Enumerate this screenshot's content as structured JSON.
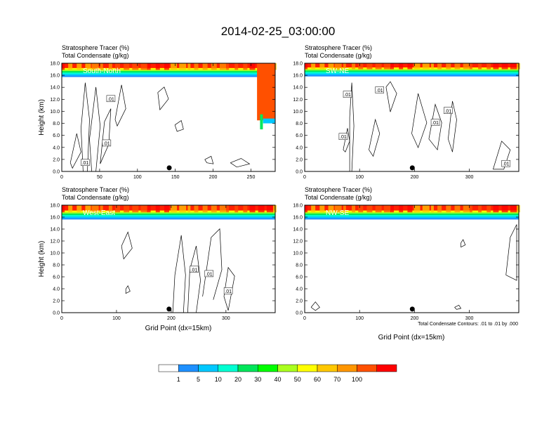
{
  "figure": {
    "title": "2014-02-25_03:00:00",
    "contour_info": "Total Condensate Contours: .01 to .01 by .000",
    "x_axis_label": "Grid Point (dx=15km)"
  },
  "colorbar": {
    "levels": [
      "1",
      "5",
      "10",
      "20",
      "30",
      "40",
      "50",
      "60",
      "70",
      "100"
    ],
    "colors": [
      "#ffffff",
      "#1e90ff",
      "#00c8ff",
      "#00ffd2",
      "#00e65a",
      "#00ff00",
      "#aaff1e",
      "#ffff00",
      "#ffc800",
      "#ff9600",
      "#ff5000",
      "#ff0000"
    ]
  },
  "chart_data": [
    {
      "type": "heatmap",
      "panel_label": "South-North",
      "left_title_line1": "Stratosphere Tracer   (%)",
      "left_title_line2": "Total Condensate   (g/kg)",
      "ylabel": "Height (km)",
      "xlabel": "",
      "xlim": [
        0,
        282
      ],
      "ylim": [
        0,
        18
      ],
      "xticks": [
        0,
        50,
        100,
        150,
        200,
        250
      ],
      "yticks": [
        "0.0",
        "2.0",
        "4.0",
        "6.0",
        "8.0",
        "10.0",
        "12.0",
        "14.0",
        "16.0",
        "18.0"
      ],
      "tracer_base_km": 15.7,
      "marker_x": 142,
      "contour_labels": [
        ".01",
        ".01",
        ".01"
      ]
    },
    {
      "type": "heatmap",
      "panel_label": "SW-NE",
      "left_title_line1": "Stratosphere Tracer   (%)",
      "left_title_line2": "Total Condensate   (g/kg)",
      "ylabel": "",
      "xlabel": "",
      "xlim": [
        0,
        390
      ],
      "ylim": [
        0,
        18
      ],
      "xticks": [
        0,
        100,
        200,
        300
      ],
      "yticks": [
        "0.0",
        "2.0",
        "4.0",
        "6.0",
        "8.0",
        "10.0",
        "12.0",
        "14.0",
        "16.0",
        "18.0"
      ],
      "tracer_base_km": 15.8,
      "marker_x": 196,
      "contour_labels": [
        ".01",
        ".01",
        ".01",
        ".01",
        ".01",
        ".01"
      ]
    },
    {
      "type": "heatmap",
      "panel_label": "West-East",
      "left_title_line1": "Stratosphere Tracer   (%)",
      "left_title_line2": "Total Condensate   (g/kg)",
      "ylabel": "Height (km)",
      "xlabel": "Grid Point (dx=15km)",
      "xlim": [
        0,
        390
      ],
      "ylim": [
        0,
        18
      ],
      "xticks": [
        0,
        100,
        200,
        300
      ],
      "yticks": [
        "0.0",
        "2.0",
        "4.0",
        "6.0",
        "8.0",
        "10.0",
        "12.0",
        "14.0",
        "16.0",
        "18.0"
      ],
      "tracer_base_km": 15.6,
      "marker_x": 196,
      "contour_labels": [
        ".01",
        ".01",
        ".01"
      ]
    },
    {
      "type": "heatmap",
      "panel_label": "NW-SE",
      "left_title_line1": "Stratosphere Tracer   (%)",
      "left_title_line2": "Total Condensate   (g/kg)",
      "ylabel": "",
      "xlabel": "Grid Point (dx=15km)",
      "xlim": [
        0,
        390
      ],
      "ylim": [
        0,
        18
      ],
      "xticks": [
        0,
        100,
        200,
        300
      ],
      "yticks": [
        "0.0",
        "2.0",
        "4.0",
        "6.0",
        "8.0",
        "10.0",
        "12.0",
        "14.0",
        "16.0",
        "18.0"
      ],
      "tracer_base_km": 15.6,
      "marker_x": 196,
      "contour_labels": []
    }
  ]
}
